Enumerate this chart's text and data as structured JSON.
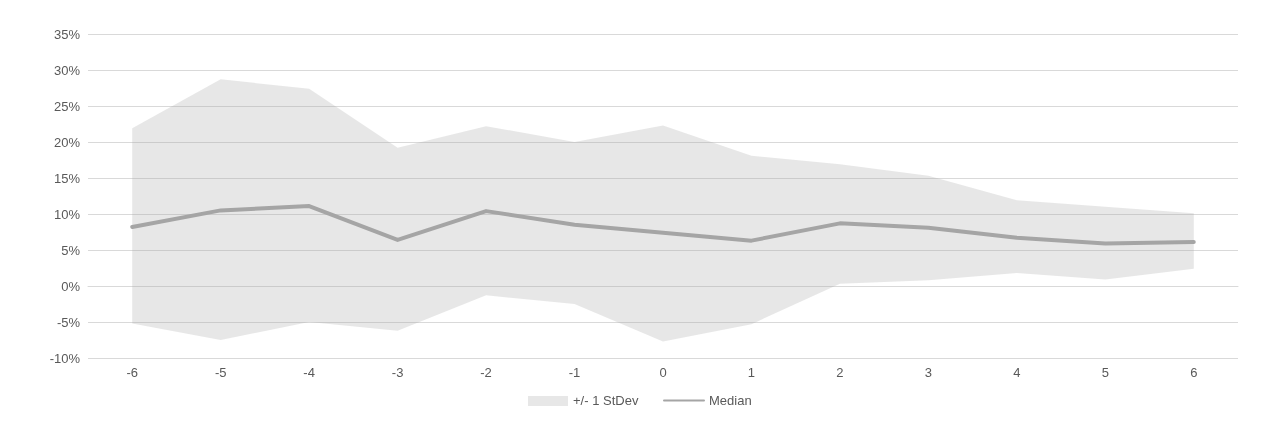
{
  "chart_data": {
    "type": "line",
    "categories": [
      "-6",
      "-5",
      "-4",
      "-3",
      "-2",
      "-1",
      "0",
      "1",
      "2",
      "3",
      "4",
      "5",
      "6"
    ],
    "series": [
      {
        "name": "Median",
        "color": "#a5a5a5",
        "values": [
          8.2,
          10.5,
          11.1,
          6.4,
          10.4,
          8.5,
          7.4,
          6.3,
          8.7,
          8.1,
          6.7,
          5.9,
          6.1
        ],
        "lower": [
          -5.2,
          -7.5,
          -5,
          -6.2,
          -1.3,
          -2.5,
          -7.7,
          -5.3,
          0.3,
          0.8,
          1.8,
          0.9,
          2.4
        ],
        "upper": [
          21.9,
          28.7,
          27.4,
          19.2,
          22.2,
          20,
          22.3,
          18.1,
          16.9,
          15.3,
          11.9,
          11,
          10.1
        ]
      }
    ],
    "annotations": [
      "+/- 1 StDev"
    ],
    "ylim": [
      -10,
      35
    ],
    "yticks": [
      {
        "value": -10,
        "label": "-10%"
      },
      {
        "value": -5,
        "label": "-5%"
      },
      {
        "value": 0,
        "label": "0%"
      },
      {
        "value": 5,
        "label": "5%"
      },
      {
        "value": 10,
        "label": "10%"
      },
      {
        "value": 15,
        "label": "15%"
      },
      {
        "value": 20,
        "label": "20%"
      },
      {
        "value": 25,
        "label": "25%"
      },
      {
        "value": 30,
        "label": "30%"
      },
      {
        "value": 35,
        "label": "35%"
      }
    ],
    "grid": "y",
    "legend": "bottom",
    "marker": "none",
    "line_style": "solid"
  }
}
